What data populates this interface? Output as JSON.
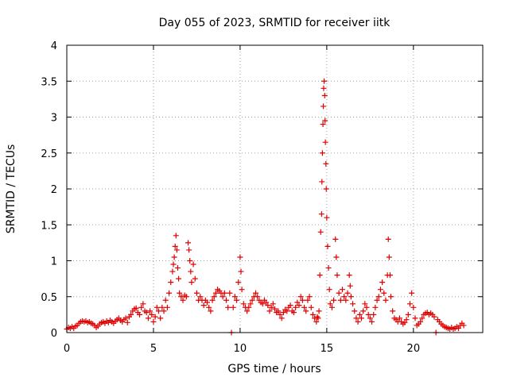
{
  "chart_data": {
    "type": "scatter",
    "title": "Day 055 of 2023, SRMTID for receiver iitk",
    "xlabel": "GPS time / hours",
    "ylabel": "SRMTID / TECUs",
    "xlim": [
      0,
      24
    ],
    "ylim": [
      0,
      4
    ],
    "xticks": [
      0,
      5,
      10,
      15,
      20
    ],
    "yticks": [
      0,
      0.5,
      1,
      1.5,
      2,
      2.5,
      3,
      3.5,
      4
    ],
    "xtick_labels": [
      "0",
      "5",
      "10",
      "15",
      "20"
    ],
    "ytick_labels": [
      "0",
      "0.5",
      "1",
      "1.5",
      "2",
      "2.5",
      "3",
      "3.5",
      "4"
    ],
    "grid": true,
    "marker": "+",
    "color": "#e00000",
    "series": [
      {
        "name": "SRMTID",
        "points": [
          [
            0.0,
            0.05
          ],
          [
            0.1,
            0.07
          ],
          [
            0.2,
            0.06
          ],
          [
            0.3,
            0.08
          ],
          [
            0.4,
            0.06
          ],
          [
            0.5,
            0.09
          ],
          [
            0.6,
            0.1
          ],
          [
            0.7,
            0.13
          ],
          [
            0.8,
            0.15
          ],
          [
            0.9,
            0.16
          ],
          [
            1.0,
            0.15
          ],
          [
            1.1,
            0.16
          ],
          [
            1.2,
            0.14
          ],
          [
            1.3,
            0.15
          ],
          [
            1.4,
            0.13
          ],
          [
            1.5,
            0.12
          ],
          [
            1.6,
            0.1
          ],
          [
            1.7,
            0.07
          ],
          [
            1.8,
            0.09
          ],
          [
            1.9,
            0.12
          ],
          [
            2.0,
            0.14
          ],
          [
            2.1,
            0.15
          ],
          [
            2.2,
            0.13
          ],
          [
            2.3,
            0.16
          ],
          [
            2.4,
            0.14
          ],
          [
            2.5,
            0.17
          ],
          [
            2.6,
            0.15
          ],
          [
            2.7,
            0.13
          ],
          [
            2.8,
            0.16
          ],
          [
            2.9,
            0.18
          ],
          [
            3.0,
            0.2
          ],
          [
            3.1,
            0.17
          ],
          [
            3.2,
            0.15
          ],
          [
            3.3,
            0.18
          ],
          [
            3.4,
            0.2
          ],
          [
            3.5,
            0.14
          ],
          [
            3.6,
            0.22
          ],
          [
            3.7,
            0.25
          ],
          [
            3.8,
            0.3
          ],
          [
            3.9,
            0.33
          ],
          [
            4.0,
            0.34
          ],
          [
            4.1,
            0.28
          ],
          [
            4.2,
            0.25
          ],
          [
            4.3,
            0.35
          ],
          [
            4.4,
            0.4
          ],
          [
            4.5,
            0.3
          ],
          [
            4.6,
            0.28
          ],
          [
            4.7,
            0.2
          ],
          [
            4.8,
            0.3
          ],
          [
            4.9,
            0.25
          ],
          [
            5.0,
            0.15
          ],
          [
            5.1,
            0.22
          ],
          [
            5.2,
            0.35
          ],
          [
            5.3,
            0.3
          ],
          [
            5.4,
            0.2
          ],
          [
            5.5,
            0.35
          ],
          [
            5.6,
            0.3
          ],
          [
            5.7,
            0.45
          ],
          [
            5.8,
            0.35
          ],
          [
            5.9,
            0.55
          ],
          [
            6.0,
            0.7
          ],
          [
            6.1,
            0.85
          ],
          [
            6.15,
            0.95
          ],
          [
            6.2,
            1.05
          ],
          [
            6.25,
            1.2
          ],
          [
            6.3,
            1.35
          ],
          [
            6.35,
            1.15
          ],
          [
            6.4,
            0.9
          ],
          [
            6.45,
            0.75
          ],
          [
            6.5,
            0.55
          ],
          [
            6.6,
            0.5
          ],
          [
            6.7,
            0.45
          ],
          [
            6.8,
            0.52
          ],
          [
            6.9,
            0.5
          ],
          [
            7.0,
            1.25
          ],
          [
            7.05,
            1.15
          ],
          [
            7.1,
            1.0
          ],
          [
            7.15,
            0.85
          ],
          [
            7.2,
            0.7
          ],
          [
            7.3,
            0.95
          ],
          [
            7.4,
            0.75
          ],
          [
            7.5,
            0.55
          ],
          [
            7.6,
            0.45
          ],
          [
            7.7,
            0.5
          ],
          [
            7.8,
            0.45
          ],
          [
            7.9,
            0.38
          ],
          [
            8.0,
            0.45
          ],
          [
            8.1,
            0.42
          ],
          [
            8.2,
            0.35
          ],
          [
            8.3,
            0.3
          ],
          [
            8.4,
            0.45
          ],
          [
            8.5,
            0.5
          ],
          [
            8.6,
            0.55
          ],
          [
            8.7,
            0.6
          ],
          [
            8.8,
            0.58
          ],
          [
            8.9,
            0.55
          ],
          [
            9.0,
            0.5
          ],
          [
            9.1,
            0.55
          ],
          [
            9.2,
            0.45
          ],
          [
            9.3,
            0.35
          ],
          [
            9.4,
            0.55
          ],
          [
            9.5,
            0.0
          ],
          [
            9.6,
            0.35
          ],
          [
            9.7,
            0.5
          ],
          [
            9.8,
            0.45
          ],
          [
            9.9,
            0.7
          ],
          [
            10.0,
            1.05
          ],
          [
            10.05,
            0.85
          ],
          [
            10.1,
            0.6
          ],
          [
            10.2,
            0.4
          ],
          [
            10.3,
            0.35
          ],
          [
            10.4,
            0.3
          ],
          [
            10.5,
            0.35
          ],
          [
            10.6,
            0.4
          ],
          [
            10.7,
            0.45
          ],
          [
            10.8,
            0.5
          ],
          [
            10.9,
            0.55
          ],
          [
            11.0,
            0.5
          ],
          [
            11.1,
            0.45
          ],
          [
            11.2,
            0.42
          ],
          [
            11.3,
            0.4
          ],
          [
            11.4,
            0.45
          ],
          [
            11.5,
            0.42
          ],
          [
            11.6,
            0.38
          ],
          [
            11.7,
            0.3
          ],
          [
            11.8,
            0.35
          ],
          [
            11.9,
            0.4
          ],
          [
            12.0,
            0.33
          ],
          [
            12.1,
            0.28
          ],
          [
            12.2,
            0.3
          ],
          [
            12.3,
            0.25
          ],
          [
            12.4,
            0.2
          ],
          [
            12.5,
            0.28
          ],
          [
            12.6,
            0.32
          ],
          [
            12.7,
            0.3
          ],
          [
            12.8,
            0.35
          ],
          [
            12.9,
            0.38
          ],
          [
            13.0,
            0.3
          ],
          [
            13.1,
            0.28
          ],
          [
            13.2,
            0.35
          ],
          [
            13.3,
            0.42
          ],
          [
            13.4,
            0.38
          ],
          [
            13.5,
            0.5
          ],
          [
            13.6,
            0.45
          ],
          [
            13.7,
            0.35
          ],
          [
            13.8,
            0.3
          ],
          [
            13.9,
            0.45
          ],
          [
            14.0,
            0.5
          ],
          [
            14.1,
            0.35
          ],
          [
            14.2,
            0.25
          ],
          [
            14.3,
            0.2
          ],
          [
            14.4,
            0.15
          ],
          [
            14.45,
            0.22
          ],
          [
            14.5,
            0.2
          ],
          [
            14.55,
            0.3
          ],
          [
            14.6,
            0.8
          ],
          [
            14.65,
            1.4
          ],
          [
            14.7,
            1.65
          ],
          [
            14.72,
            2.1
          ],
          [
            14.75,
            2.5
          ],
          [
            14.78,
            2.9
          ],
          [
            14.8,
            3.15
          ],
          [
            14.82,
            3.4
          ],
          [
            14.85,
            3.5
          ],
          [
            14.88,
            3.3
          ],
          [
            14.9,
            2.95
          ],
          [
            14.92,
            2.65
          ],
          [
            14.95,
            2.35
          ],
          [
            14.97,
            2.0
          ],
          [
            15.0,
            1.6
          ],
          [
            15.05,
            1.2
          ],
          [
            15.1,
            0.9
          ],
          [
            15.15,
            0.6
          ],
          [
            15.2,
            0.4
          ],
          [
            15.3,
            0.35
          ],
          [
            15.4,
            0.45
          ],
          [
            15.5,
            1.3
          ],
          [
            15.55,
            1.05
          ],
          [
            15.6,
            0.8
          ],
          [
            15.7,
            0.55
          ],
          [
            15.8,
            0.45
          ],
          [
            15.9,
            0.6
          ],
          [
            16.0,
            0.5
          ],
          [
            16.1,
            0.45
          ],
          [
            16.2,
            0.55
          ],
          [
            16.3,
            0.8
          ],
          [
            16.35,
            0.65
          ],
          [
            16.4,
            0.5
          ],
          [
            16.5,
            0.4
          ],
          [
            16.6,
            0.3
          ],
          [
            16.7,
            0.2
          ],
          [
            16.8,
            0.15
          ],
          [
            16.9,
            0.25
          ],
          [
            17.0,
            0.2
          ],
          [
            17.1,
            0.3
          ],
          [
            17.2,
            0.4
          ],
          [
            17.3,
            0.35
          ],
          [
            17.4,
            0.25
          ],
          [
            17.5,
            0.2
          ],
          [
            17.6,
            0.15
          ],
          [
            17.7,
            0.25
          ],
          [
            17.8,
            0.35
          ],
          [
            17.9,
            0.45
          ],
          [
            18.0,
            0.5
          ],
          [
            18.1,
            0.6
          ],
          [
            18.2,
            0.7
          ],
          [
            18.3,
            0.55
          ],
          [
            18.4,
            0.45
          ],
          [
            18.5,
            0.8
          ],
          [
            18.55,
            1.3
          ],
          [
            18.6,
            1.05
          ],
          [
            18.65,
            0.8
          ],
          [
            18.7,
            0.5
          ],
          [
            18.8,
            0.3
          ],
          [
            18.9,
            0.2
          ],
          [
            19.0,
            0.18
          ],
          [
            19.1,
            0.15
          ],
          [
            19.2,
            0.2
          ],
          [
            19.3,
            0.15
          ],
          [
            19.4,
            0.12
          ],
          [
            19.5,
            0.14
          ],
          [
            19.6,
            0.18
          ],
          [
            19.7,
            0.25
          ],
          [
            19.8,
            0.4
          ],
          [
            19.9,
            0.55
          ],
          [
            20.0,
            0.35
          ],
          [
            20.1,
            0.2
          ],
          [
            20.2,
            0.1
          ],
          [
            20.3,
            0.12
          ],
          [
            20.4,
            0.15
          ],
          [
            20.5,
            0.2
          ],
          [
            20.6,
            0.25
          ],
          [
            20.7,
            0.27
          ],
          [
            20.8,
            0.28
          ],
          [
            20.9,
            0.25
          ],
          [
            21.0,
            0.27
          ],
          [
            21.1,
            0.25
          ],
          [
            21.2,
            0.22
          ],
          [
            21.3,
            0.0
          ],
          [
            21.4,
            0.18
          ],
          [
            21.5,
            0.15
          ],
          [
            21.6,
            0.12
          ],
          [
            21.7,
            0.1
          ],
          [
            21.8,
            0.08
          ],
          [
            21.9,
            0.07
          ],
          [
            22.0,
            0.06
          ],
          [
            22.1,
            0.05
          ],
          [
            22.2,
            0.07
          ],
          [
            22.3,
            0.05
          ],
          [
            22.4,
            0.06
          ],
          [
            22.5,
            0.08
          ],
          [
            22.6,
            0.06
          ],
          [
            22.7,
            0.1
          ],
          [
            22.8,
            0.13
          ],
          [
            22.9,
            0.1
          ]
        ]
      }
    ]
  }
}
